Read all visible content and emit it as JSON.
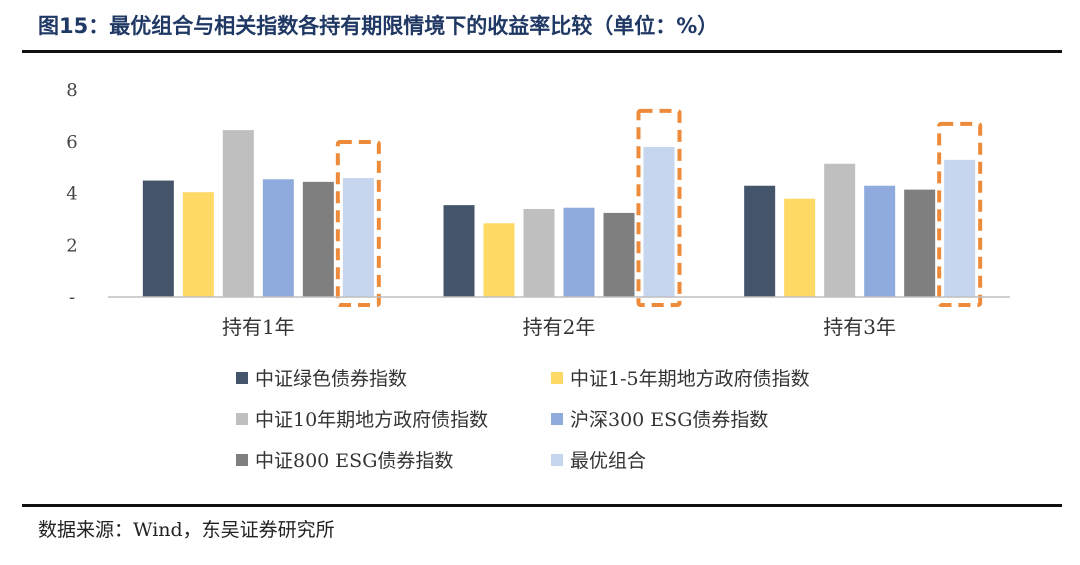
{
  "header": {
    "title": "图15：最优组合与相关指数各持有期限情境下的收益率比较（单位：%）"
  },
  "footer": {
    "source": "数据来源：Wind，东吴证券研究所"
  },
  "chart_data": {
    "type": "bar",
    "categories": [
      "持有1年",
      "持有2年",
      "持有3年"
    ],
    "ylim": [
      0,
      8
    ],
    "yticks": [
      0,
      2,
      4,
      6,
      8
    ],
    "ytick_labels": [
      "-",
      "2",
      "4",
      "6",
      "8"
    ],
    "grid": false,
    "legend_position": "bottom",
    "highlighted_series": "最优组合",
    "highlight_color": "#ed8b3a",
    "series": [
      {
        "name": "中证绿色债券指数",
        "color": "#44546a",
        "values": [
          4.5,
          3.55,
          4.3
        ]
      },
      {
        "name": "中证1-5年期地方政府债指数",
        "color": "#ffd966",
        "values": [
          4.05,
          2.85,
          3.8
        ]
      },
      {
        "name": "中证10年期地方政府债指数",
        "color": "#bfbfbf",
        "values": [
          6.45,
          3.4,
          5.15
        ]
      },
      {
        "name": "沪深300 ESG债券指数",
        "color": "#8faadc",
        "values": [
          4.55,
          3.45,
          4.3
        ]
      },
      {
        "name": "中证800 ESG债券指数",
        "color": "#7f7f7f",
        "values": [
          4.45,
          3.25,
          4.15
        ]
      },
      {
        "name": "最优组合",
        "color": "#c5d6ee",
        "values": [
          4.6,
          5.8,
          5.3
        ]
      }
    ]
  }
}
